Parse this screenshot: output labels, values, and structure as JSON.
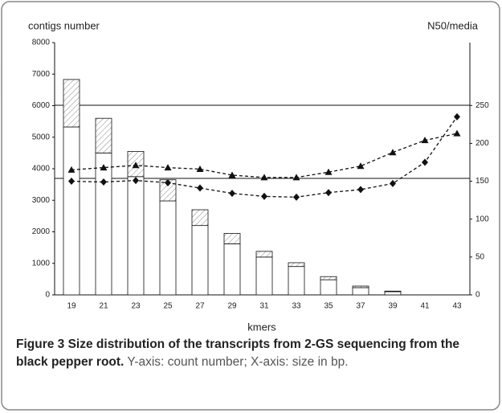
{
  "chart_data": {
    "type": "stacked_bar_line",
    "y_label": "contigs number",
    "y2_label": "N50/media",
    "x_label": "kmers",
    "categories": [
      "19",
      "21",
      "23",
      "25",
      "27",
      "29",
      "31",
      "33",
      "35",
      "37",
      "39",
      "41",
      "43"
    ],
    "bar_series": [
      {
        "color": "#ffffff",
        "pattern": "none",
        "values": [
          5325,
          4500,
          3750,
          2980,
          2200,
          1620,
          1200,
          900,
          480,
          230,
          100,
          0,
          0
        ]
      },
      {
        "color": "#ffffff",
        "pattern": "hatch",
        "values": [
          1505,
          1100,
          800,
          670,
          500,
          330,
          180,
          120,
          100,
          50,
          20,
          0,
          0
        ]
      }
    ],
    "line_series": [
      {
        "color": "#111111",
        "marker": "triangle",
        "style": "dashed",
        "axis": "y2",
        "values": [
          165,
          168,
          171,
          168,
          166,
          158,
          155,
          155,
          162,
          170,
          188,
          204,
          213
        ]
      },
      {
        "color": "#111111",
        "marker": "diamond",
        "style": "dashed",
        "axis": "y2",
        "values": [
          150,
          149,
          151,
          148,
          141,
          134,
          130,
          129,
          135,
          139,
          147,
          175,
          235
        ]
      }
    ],
    "ylim": [
      0,
      8000
    ],
    "yticks": [
      0,
      1000,
      2000,
      3000,
      4000,
      5000,
      6000,
      7000,
      8000
    ],
    "y2lim": [
      0,
      333
    ],
    "y2ticks": [
      0,
      50,
      100,
      150,
      200,
      250
    ]
  },
  "caption": {
    "label": "Figure 3 Size distribution of the transcripts from 2-GS sequencing from the black pepper root.",
    "text": "Y-axis: count number; X-axis: size in bp."
  }
}
